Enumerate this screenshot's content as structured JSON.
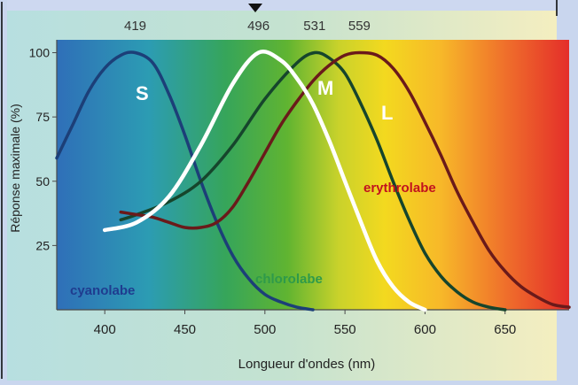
{
  "chart_data": {
    "type": "line",
    "xlabel": "Longueur d'ondes (nm)",
    "ylabel": "Réponse maximale (%)",
    "xlim": [
      370,
      690
    ],
    "ylim": [
      0,
      105
    ],
    "x_ticks": [
      "400",
      "450",
      "500",
      "550",
      "600",
      "650"
    ],
    "x_tick_values": [
      400,
      450,
      500,
      550,
      600,
      650
    ],
    "y_ticks": [
      "25",
      "50",
      "75",
      "100"
    ],
    "y_tick_values": [
      25,
      50,
      75,
      100
    ],
    "peak_labels": [
      "419",
      "496",
      "531",
      "559"
    ],
    "peak_values": [
      419,
      496,
      531,
      559
    ],
    "grid": false,
    "series": [
      {
        "name": "S",
        "pigment": "cyanolabe",
        "color": "#1c3f78",
        "label_color": "#1f3c8f",
        "x": [
          370,
          380,
          390,
          400,
          410,
          419,
          430,
          440,
          450,
          460,
          470,
          480,
          490,
          500,
          510,
          520,
          530
        ],
        "y": [
          59,
          72,
          85,
          94,
          99,
          100,
          96,
          84,
          68,
          50,
          34,
          21,
          12,
          6,
          3,
          1,
          0
        ]
      },
      {
        "name": "",
        "pigment": "",
        "color": "#ffffff",
        "label_color": "#ffffff",
        "x": [
          400,
          420,
          440,
          460,
          480,
          496,
          510,
          520,
          530,
          540,
          550,
          560,
          570,
          580,
          590,
          600
        ],
        "y": [
          31,
          34,
          44,
          64,
          88,
          100,
          97,
          90,
          80,
          66,
          50,
          34,
          19,
          9,
          3,
          0
        ]
      },
      {
        "name": "M",
        "pigment": "chlorolabe",
        "color": "#16452c",
        "label_color": "#2e9a4a",
        "x": [
          410,
          420,
          440,
          460,
          480,
          500,
          520,
          531,
          540,
          550,
          560,
          570,
          580,
          590,
          600,
          610,
          620,
          630,
          640,
          650
        ],
        "y": [
          35,
          37,
          42,
          50,
          64,
          82,
          96,
          100,
          98,
          92,
          80,
          66,
          50,
          35,
          22,
          13,
          7,
          3,
          1,
          0
        ]
      },
      {
        "name": "L",
        "pigment": "erythrolabe",
        "color": "#6a1a1a",
        "label_color": "#c2121e",
        "x": [
          410,
          420,
          430,
          440,
          450,
          460,
          470,
          480,
          490,
          500,
          510,
          520,
          530,
          540,
          550,
          559,
          570,
          580,
          590,
          600,
          610,
          620,
          630,
          640,
          650,
          660,
          670,
          680,
          690
        ],
        "y": [
          38,
          37,
          36,
          34,
          32,
          32,
          34,
          40,
          50,
          61,
          72,
          81,
          89,
          95,
          99,
          100,
          99,
          94,
          85,
          73,
          60,
          46,
          34,
          23,
          15,
          9,
          5,
          2,
          1
        ]
      }
    ]
  }
}
